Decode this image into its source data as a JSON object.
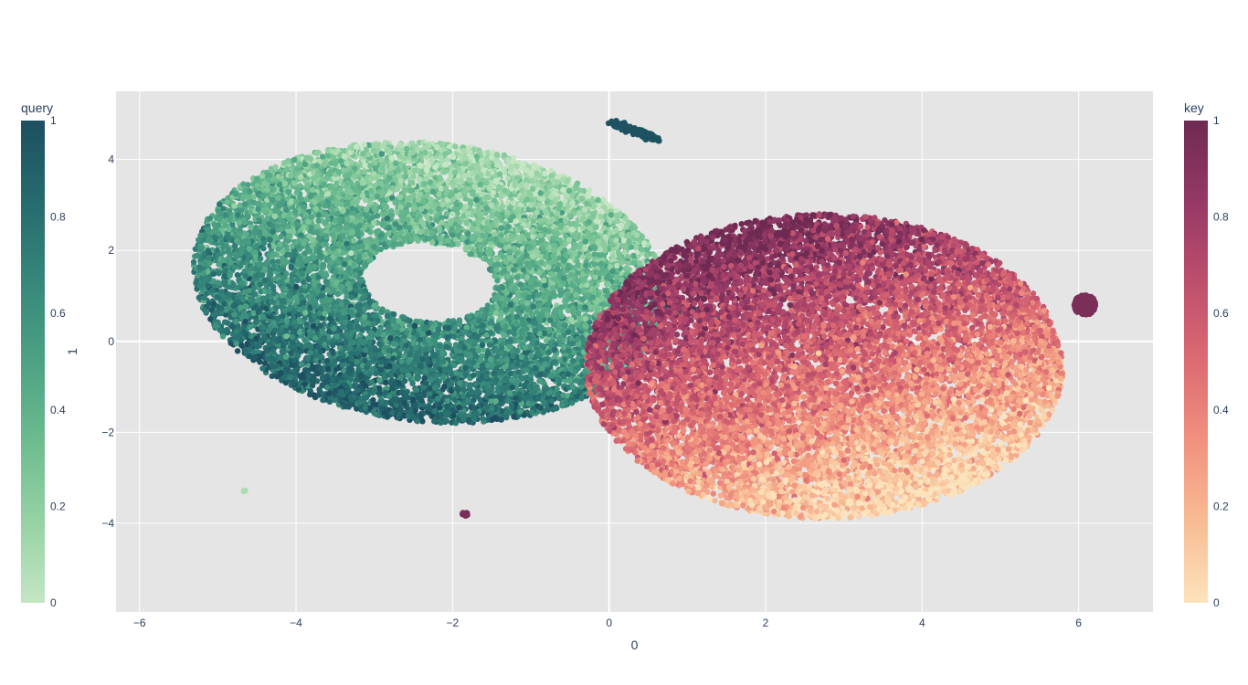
{
  "chart_data": {
    "type": "scatter",
    "title": "",
    "xlabel": "0",
    "ylabel": "1",
    "xlim": [
      -6.3,
      6.95
    ],
    "ylim": [
      -5.95,
      5.5
    ],
    "x_ticks": [
      -6,
      -4,
      -2,
      0,
      2,
      4,
      6
    ],
    "y_ticks": [
      -4,
      -2,
      0,
      2,
      4
    ],
    "x_tick_labels": [
      "−6",
      "−4",
      "−2",
      "0",
      "2",
      "4",
      "6"
    ],
    "y_tick_labels": [
      "−4",
      "−2",
      "0",
      "2",
      "4"
    ],
    "grid": true,
    "plot_background": "#e5e5e5",
    "series": [
      {
        "colorbar_title": "query",
        "colorscale": [
          "#c4e6c3",
          "#96d2a4",
          "#6dbc90",
          "#4da284",
          "#36877a",
          "#266b6e",
          "#1d4f60"
        ],
        "colorbar_range": [
          0,
          1
        ],
        "colorbar_ticks": [
          "0",
          "0.2",
          "0.4",
          "0.6",
          "0.8",
          "1"
        ],
        "clusters": [
          {
            "shape": "ring",
            "cx": -2.3,
            "cy": 1.3,
            "rx": 2.95,
            "ry": 3.5,
            "inner_rx": 1.1,
            "inner_ry": 0.75,
            "count": 10500,
            "color_gradient": [
              -1.6,
              -3.1
            ],
            "color_range": [
              0.0,
              1.0
            ]
          },
          {
            "shape": "line",
            "x0": 0.05,
            "y0": 4.8,
            "x1": 0.6,
            "y1": 4.45,
            "count": 220,
            "color_value": 0.98
          },
          {
            "shape": "line",
            "x0": 0.6,
            "y0": 0.85,
            "x1": 1.55,
            "y1": 0.45,
            "count": 320,
            "color_value": 0.98
          },
          {
            "shape": "blob",
            "cx": -4.65,
            "cy": -3.3,
            "rx": 0.05,
            "ry": 0.04,
            "count": 3,
            "color_value": 0.08
          }
        ]
      },
      {
        "colorbar_title": "key",
        "colorscale": [
          "#fce3bc",
          "#f8bc94",
          "#f1927f",
          "#dc6b72",
          "#bd4f6d",
          "#953966",
          "#6e2a52"
        ],
        "colorbar_range": [
          0,
          1
        ],
        "colorbar_ticks": [
          "0",
          "0.2",
          "0.4",
          "0.6",
          "0.8",
          "1"
        ],
        "clusters": [
          {
            "shape": "disk",
            "cx": 2.75,
            "cy": -0.55,
            "rx": 3.05,
            "ry": 3.35,
            "count": 12500,
            "color_gradient": [
              -1.6,
              3.0
            ],
            "color_range": [
              0.0,
              1.0
            ]
          },
          {
            "shape": "blob",
            "cx": 6.08,
            "cy": 0.8,
            "rx": 0.14,
            "ry": 0.22,
            "count": 180,
            "color_value": 0.95
          },
          {
            "shape": "blob",
            "cx": -1.85,
            "cy": -3.8,
            "rx": 0.05,
            "ry": 0.04,
            "count": 10,
            "color_value": 0.95
          }
        ]
      }
    ]
  }
}
